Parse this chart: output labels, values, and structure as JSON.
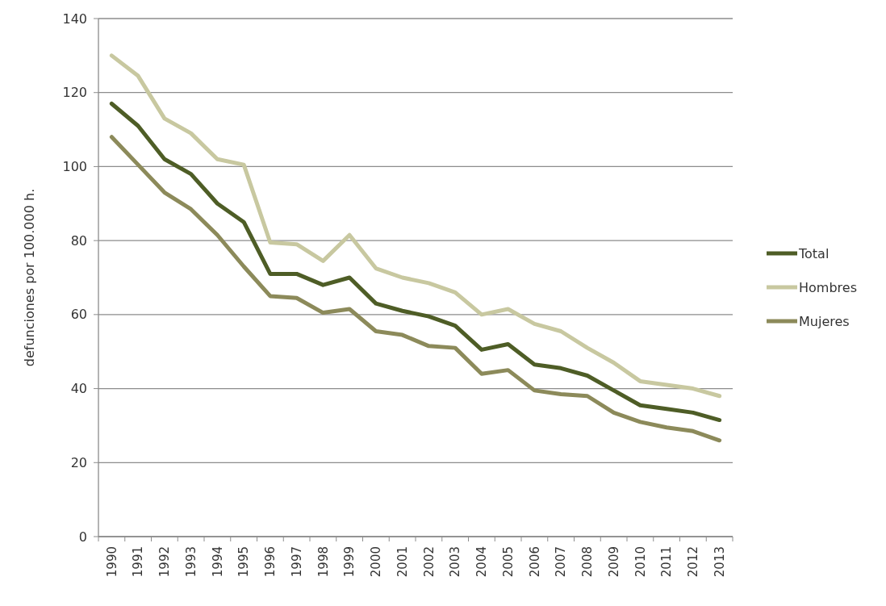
{
  "chart_data": {
    "type": "line",
    "ylabel": "defunciones por 100.000 h.",
    "categories": [
      "1990",
      "1991",
      "1992",
      "1993",
      "1994",
      "1995",
      "1996",
      "1997",
      "1998",
      "1999",
      "2000",
      "2001",
      "2002",
      "2003",
      "2004",
      "2005",
      "2006",
      "2007",
      "2008",
      "2009",
      "2010",
      "2011",
      "2012",
      "2013"
    ],
    "series": [
      {
        "name": "Total",
        "color": "#4e5d26",
        "values": [
          117,
          111,
          102,
          98,
          90,
          85,
          71,
          71,
          68,
          70,
          63,
          61,
          59.5,
          57,
          50.5,
          52,
          46.5,
          45.5,
          43.5,
          39.5,
          35.5,
          34.5,
          33.5,
          31.5
        ]
      },
      {
        "name": "Hombres",
        "color": "#c8c8a0",
        "values": [
          130,
          124.5,
          113,
          109,
          102,
          100.5,
          79.5,
          79,
          74.5,
          81.5,
          72.5,
          70,
          68.5,
          66,
          60,
          61.5,
          57.5,
          55.5,
          51,
          47,
          42,
          41,
          40,
          38
        ]
      },
      {
        "name": "Mujeres",
        "color": "#8c8a5a",
        "values": [
          108,
          100.5,
          93,
          88.5,
          81.5,
          73,
          65,
          64.5,
          60.5,
          61.5,
          55.5,
          54.5,
          51.5,
          51,
          44,
          45,
          39.5,
          38.5,
          38,
          33.5,
          31,
          29.5,
          28.5,
          26
        ]
      }
    ],
    "ylim": [
      0,
      140
    ],
    "yticks": [
      0,
      20,
      40,
      60,
      80,
      100,
      120,
      140
    ],
    "grid": "y",
    "legend": "right",
    "marker": "none",
    "line_style": "solid"
  }
}
